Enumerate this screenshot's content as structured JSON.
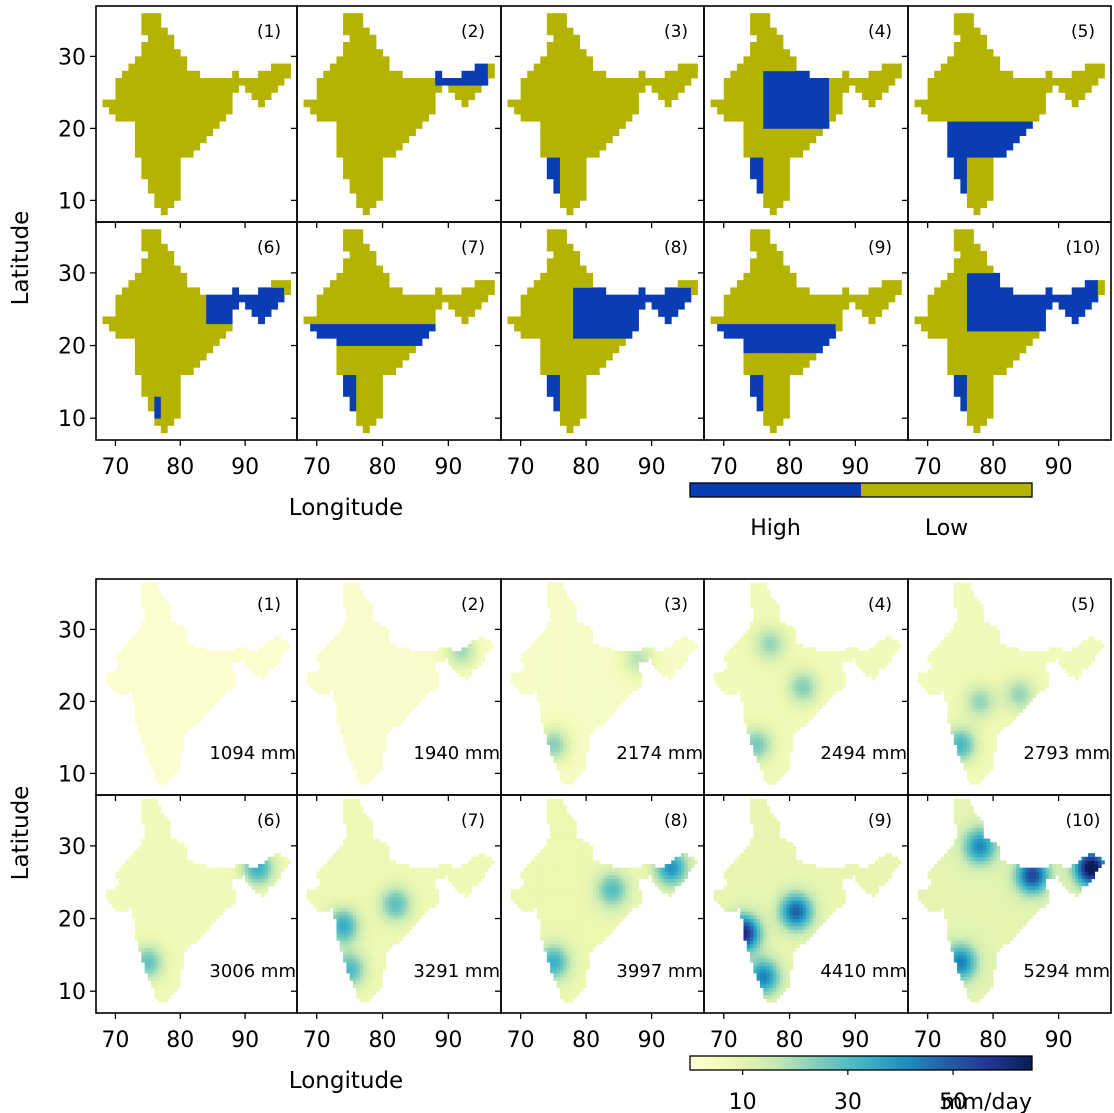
{
  "figure": {
    "top_block": {
      "ylabel": "Latitude",
      "xlabel": "Longitude",
      "colorbar": {
        "type": "categorical",
        "categories": [
          {
            "label": "High",
            "color": "#0a3cb4"
          },
          {
            "label": "Low",
            "color": "#b4b400"
          }
        ]
      }
    },
    "bottom_block": {
      "ylabel": "Latitude",
      "xlabel": "Longitude",
      "colorbar": {
        "type": "continuous",
        "ticks": [
          "10",
          "30",
          "50"
        ],
        "tick_values": [
          10,
          30,
          50
        ],
        "range": [
          0,
          65
        ],
        "unit": "mm/day",
        "colors": [
          "#ffffd9",
          "#edf8b1",
          "#c7e9b4",
          "#7fcdbb",
          "#41b6c4",
          "#1d91c0",
          "#225ea8",
          "#253494",
          "#081d58"
        ]
      }
    }
  },
  "chart_data": [
    {
      "type": "heatmap",
      "description_of_kind": "binary classification maps",
      "xlabel": "Longitude",
      "ylabel": "Latitude",
      "xticks": [
        70,
        80,
        90
      ],
      "yticks": [
        10,
        20,
        30
      ],
      "xlim": [
        67,
        98
      ],
      "ylim": [
        7,
        37
      ],
      "panels": [
        {
          "label": "(1)",
          "high": []
        },
        {
          "label": "(2)",
          "high": [
            [
              88,
              26,
              96,
              29
            ]
          ]
        },
        {
          "label": "(3)",
          "high": [
            [
              74,
              10,
              76,
              16
            ]
          ]
        },
        {
          "label": "(4)",
          "high": [
            [
              76,
              20,
              86,
              28
            ],
            [
              74,
              10,
              76,
              16
            ]
          ]
        },
        {
          "label": "(5)",
          "high": [
            [
              72,
              16,
              86,
              21
            ],
            [
              74,
              10,
              76,
              16
            ]
          ]
        },
        {
          "label": "(6)",
          "high": [
            [
              84,
              23,
              96,
              28
            ],
            [
              76,
              10,
              77,
              13
            ]
          ]
        },
        {
          "label": "(7)",
          "high": [
            [
              68,
              20,
              88,
              23
            ],
            [
              74,
              10,
              76,
              16
            ]
          ]
        },
        {
          "label": "(8)",
          "high": [
            [
              78,
              21,
              96,
              28
            ],
            [
              74,
              10,
              76,
              16
            ]
          ]
        },
        {
          "label": "(9)",
          "high": [
            [
              68,
              19,
              87,
              23
            ],
            [
              74,
              10,
              76,
              16
            ]
          ]
        },
        {
          "label": "(10)",
          "high": [
            [
              76,
              22,
              96,
              30
            ],
            [
              74,
              10,
              76,
              16
            ]
          ]
        }
      ],
      "categories": [
        "High",
        "Low"
      ]
    },
    {
      "type": "heatmap",
      "description_of_kind": "mean daily rainfall maps",
      "xlabel": "Longitude",
      "ylabel": "Latitude",
      "xticks": [
        70,
        80,
        90
      ],
      "yticks": [
        10,
        20,
        30
      ],
      "xlim": [
        67,
        98
      ],
      "ylim": [
        7,
        37
      ],
      "colorbar_ticks": [
        10,
        30,
        50
      ],
      "colorbar_unit": "mm/day",
      "panels": [
        {
          "label": "(1)",
          "total": "1094 mm",
          "base": 2,
          "hotspots": []
        },
        {
          "label": "(2)",
          "total": "1940 mm",
          "base": 3,
          "hotspots": [
            [
              92,
              27,
              18
            ]
          ]
        },
        {
          "label": "(3)",
          "total": "2174 mm",
          "base": 4,
          "hotspots": [
            [
              75,
              14,
              20
            ],
            [
              88,
              26,
              14
            ]
          ]
        },
        {
          "label": "(4)",
          "total": "2494 mm",
          "base": 6,
          "hotspots": [
            [
              82,
              22,
              18
            ],
            [
              77,
              28,
              16
            ],
            [
              75,
              14,
              20
            ]
          ]
        },
        {
          "label": "(5)",
          "total": "2793 mm",
          "base": 6,
          "hotspots": [
            [
              75,
              14,
              26
            ],
            [
              78,
              20,
              16
            ],
            [
              84,
              21,
              16
            ]
          ]
        },
        {
          "label": "(6)",
          "total": "3006 mm",
          "base": 6,
          "hotspots": [
            [
              92,
              27,
              28
            ],
            [
              75,
              14,
              22
            ]
          ]
        },
        {
          "label": "(7)",
          "total": "3291 mm",
          "base": 7,
          "hotspots": [
            [
              74,
              19,
              28
            ],
            [
              82,
              22,
              22
            ],
            [
              75,
              13,
              24
            ]
          ]
        },
        {
          "label": "(8)",
          "total": "3997 mm",
          "base": 8,
          "hotspots": [
            [
              93,
              27,
              32
            ],
            [
              84,
              24,
              22
            ],
            [
              75,
              14,
              26
            ]
          ]
        },
        {
          "label": "(9)",
          "total": "4410 mm",
          "base": 9,
          "hotspots": [
            [
              73,
              18,
              52
            ],
            [
              81,
              21,
              40
            ],
            [
              76,
              12,
              34
            ]
          ]
        },
        {
          "label": "(10)",
          "total": "5294 mm",
          "base": 10,
          "hotspots": [
            [
              95,
              27,
              60
            ],
            [
              86,
              26,
              44
            ],
            [
              78,
              30,
              32
            ],
            [
              75,
              14,
              34
            ]
          ]
        }
      ]
    }
  ]
}
